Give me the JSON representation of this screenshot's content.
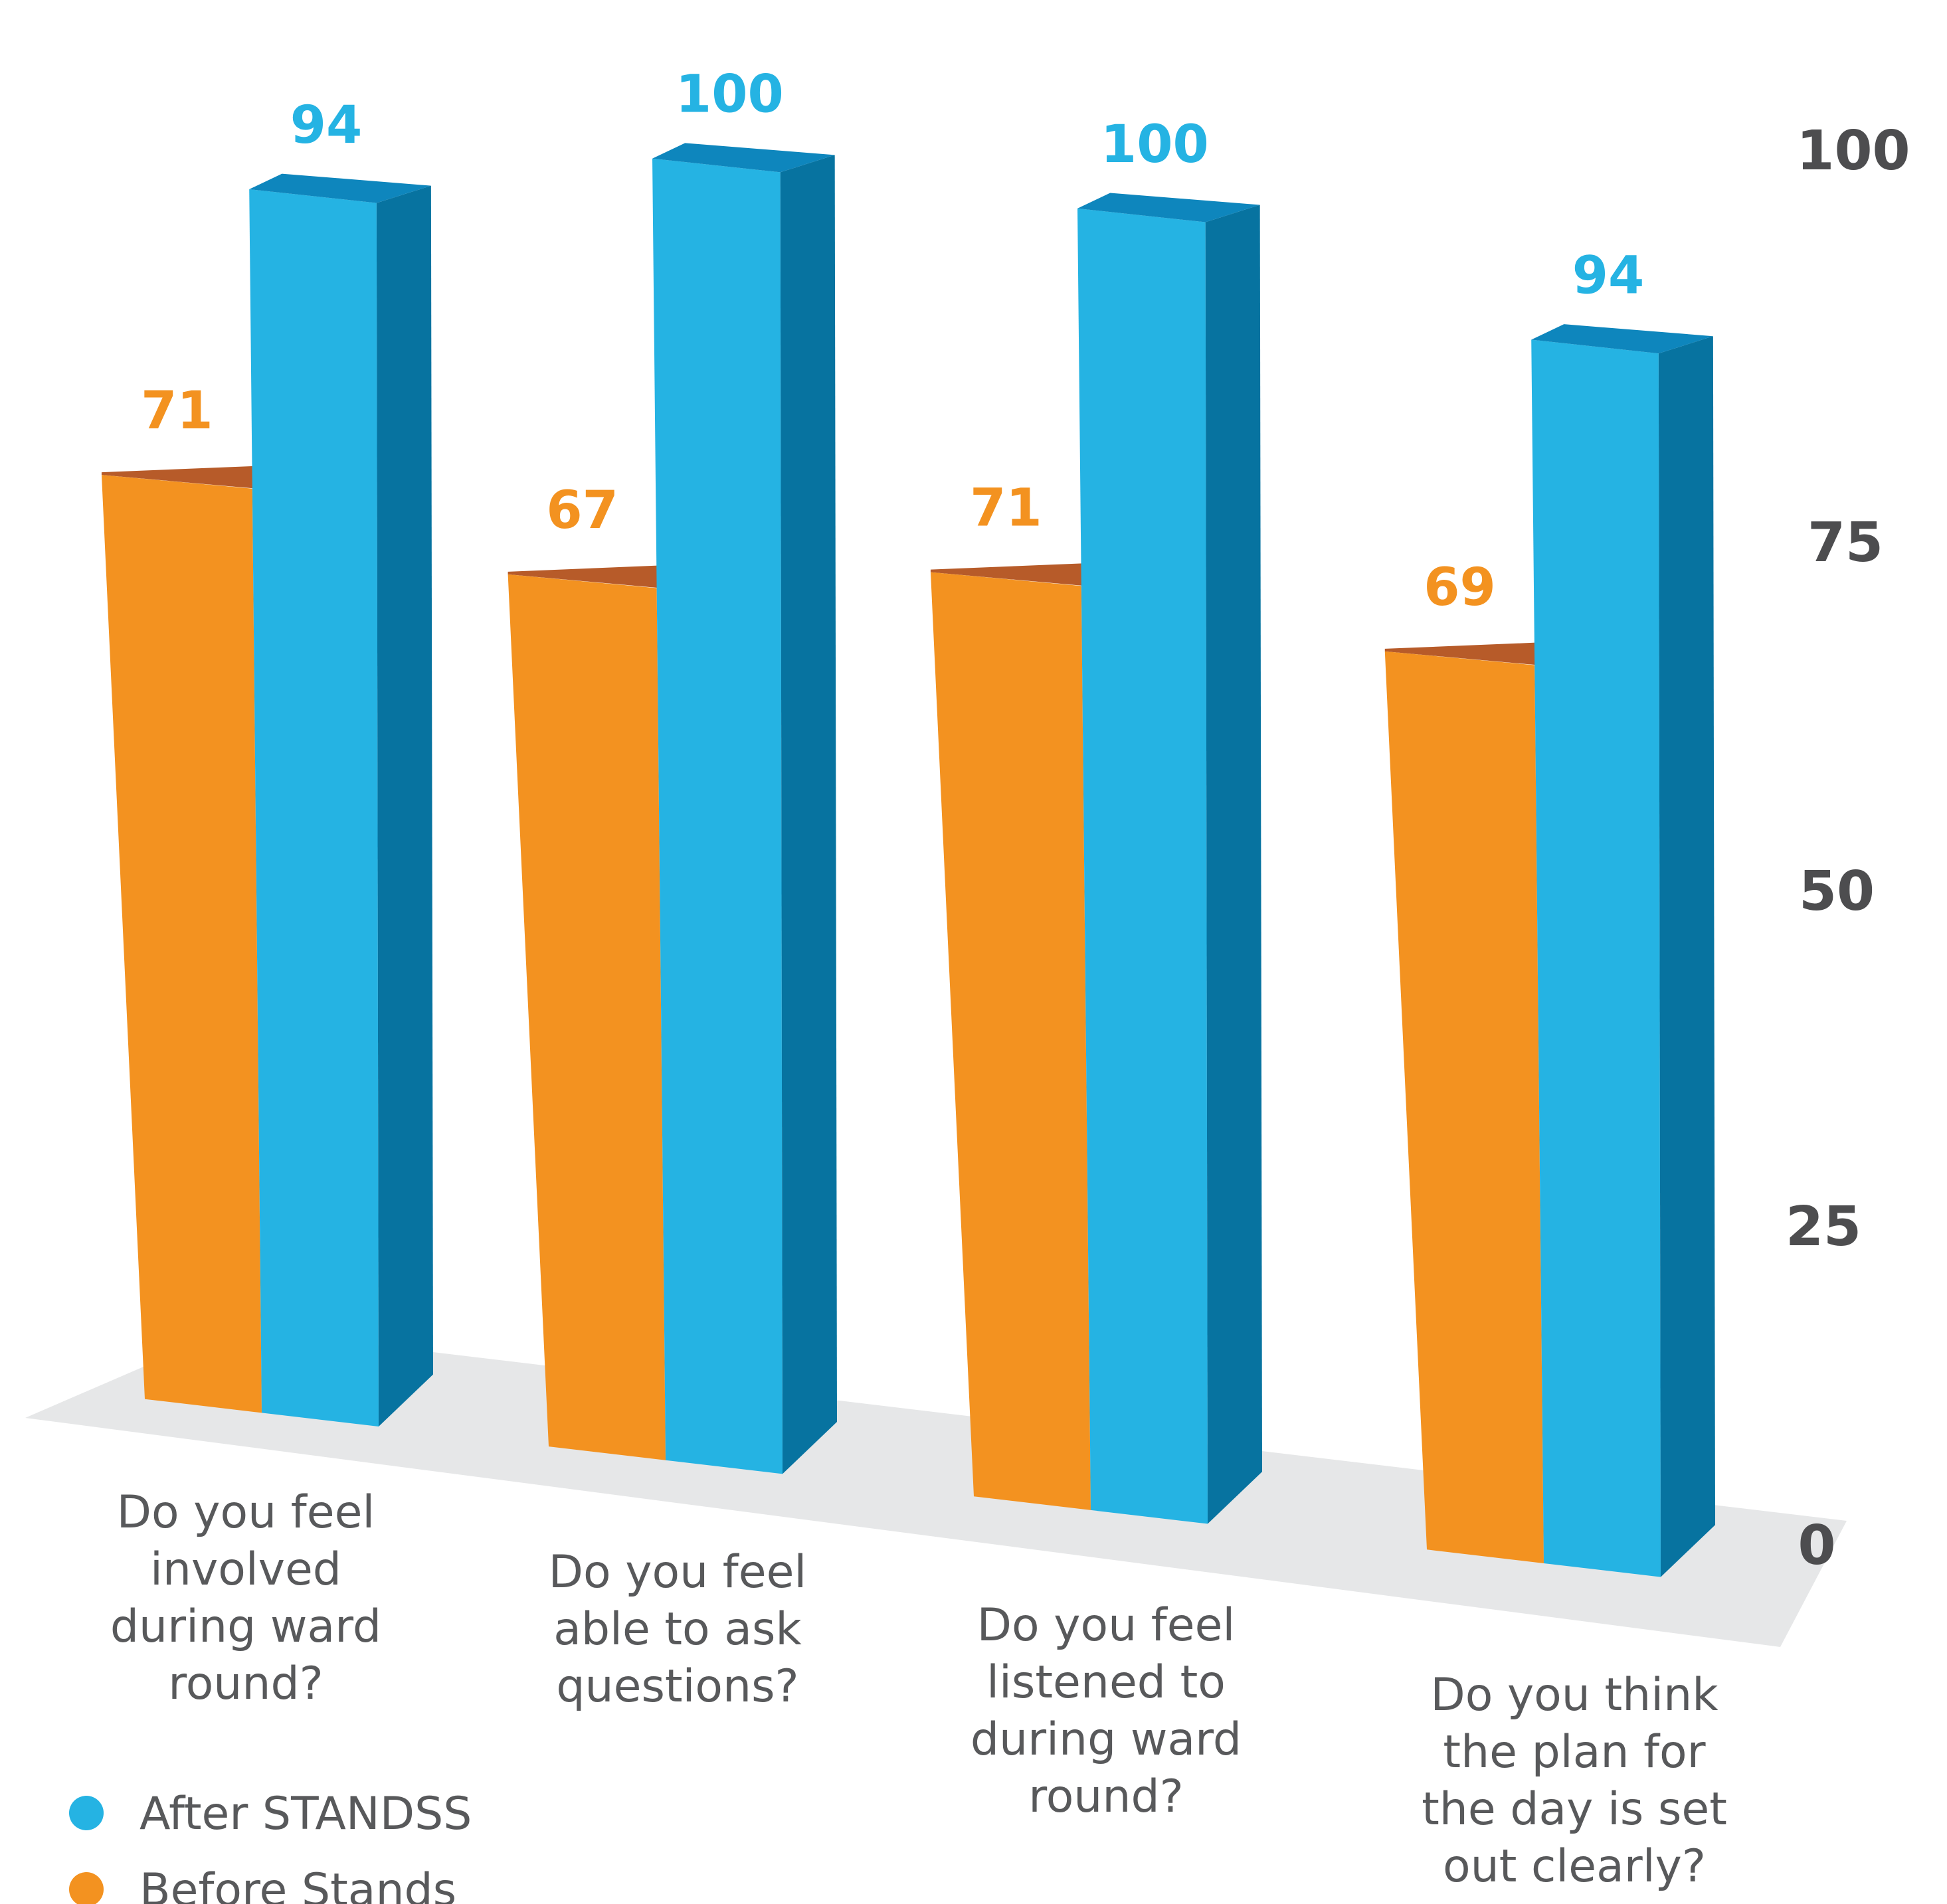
{
  "chart_data": {
    "type": "bar",
    "categories": [
      [
        "Do you feel",
        "involved",
        "during ward",
        "round?"
      ],
      [
        "Do you feel",
        "able to ask",
        "questions?"
      ],
      [
        "Do you feel",
        "listened to",
        "during ward",
        "round?"
      ],
      [
        "Do you think",
        "the plan for",
        "the day is set",
        "out clearly?"
      ]
    ],
    "series": [
      {
        "name": "Before Stands",
        "values": [
          71,
          67,
          71,
          69
        ],
        "color": "#f39220",
        "top_color": "#b75b29"
      },
      {
        "name": "After STANDSS",
        "values": [
          94,
          100,
          100,
          94
        ],
        "color": "#25b3e3",
        "side_color": "#0773a0",
        "top_color": "#0e86bd"
      }
    ],
    "ylim": [
      0,
      100
    ],
    "yticks": [
      0,
      25,
      50,
      75,
      100
    ],
    "grid": false,
    "legend_position": "bottom-left",
    "floor_color": "#e6e7e8",
    "tick_color": "#4d4d4f",
    "category_label_color": "#58595b"
  }
}
